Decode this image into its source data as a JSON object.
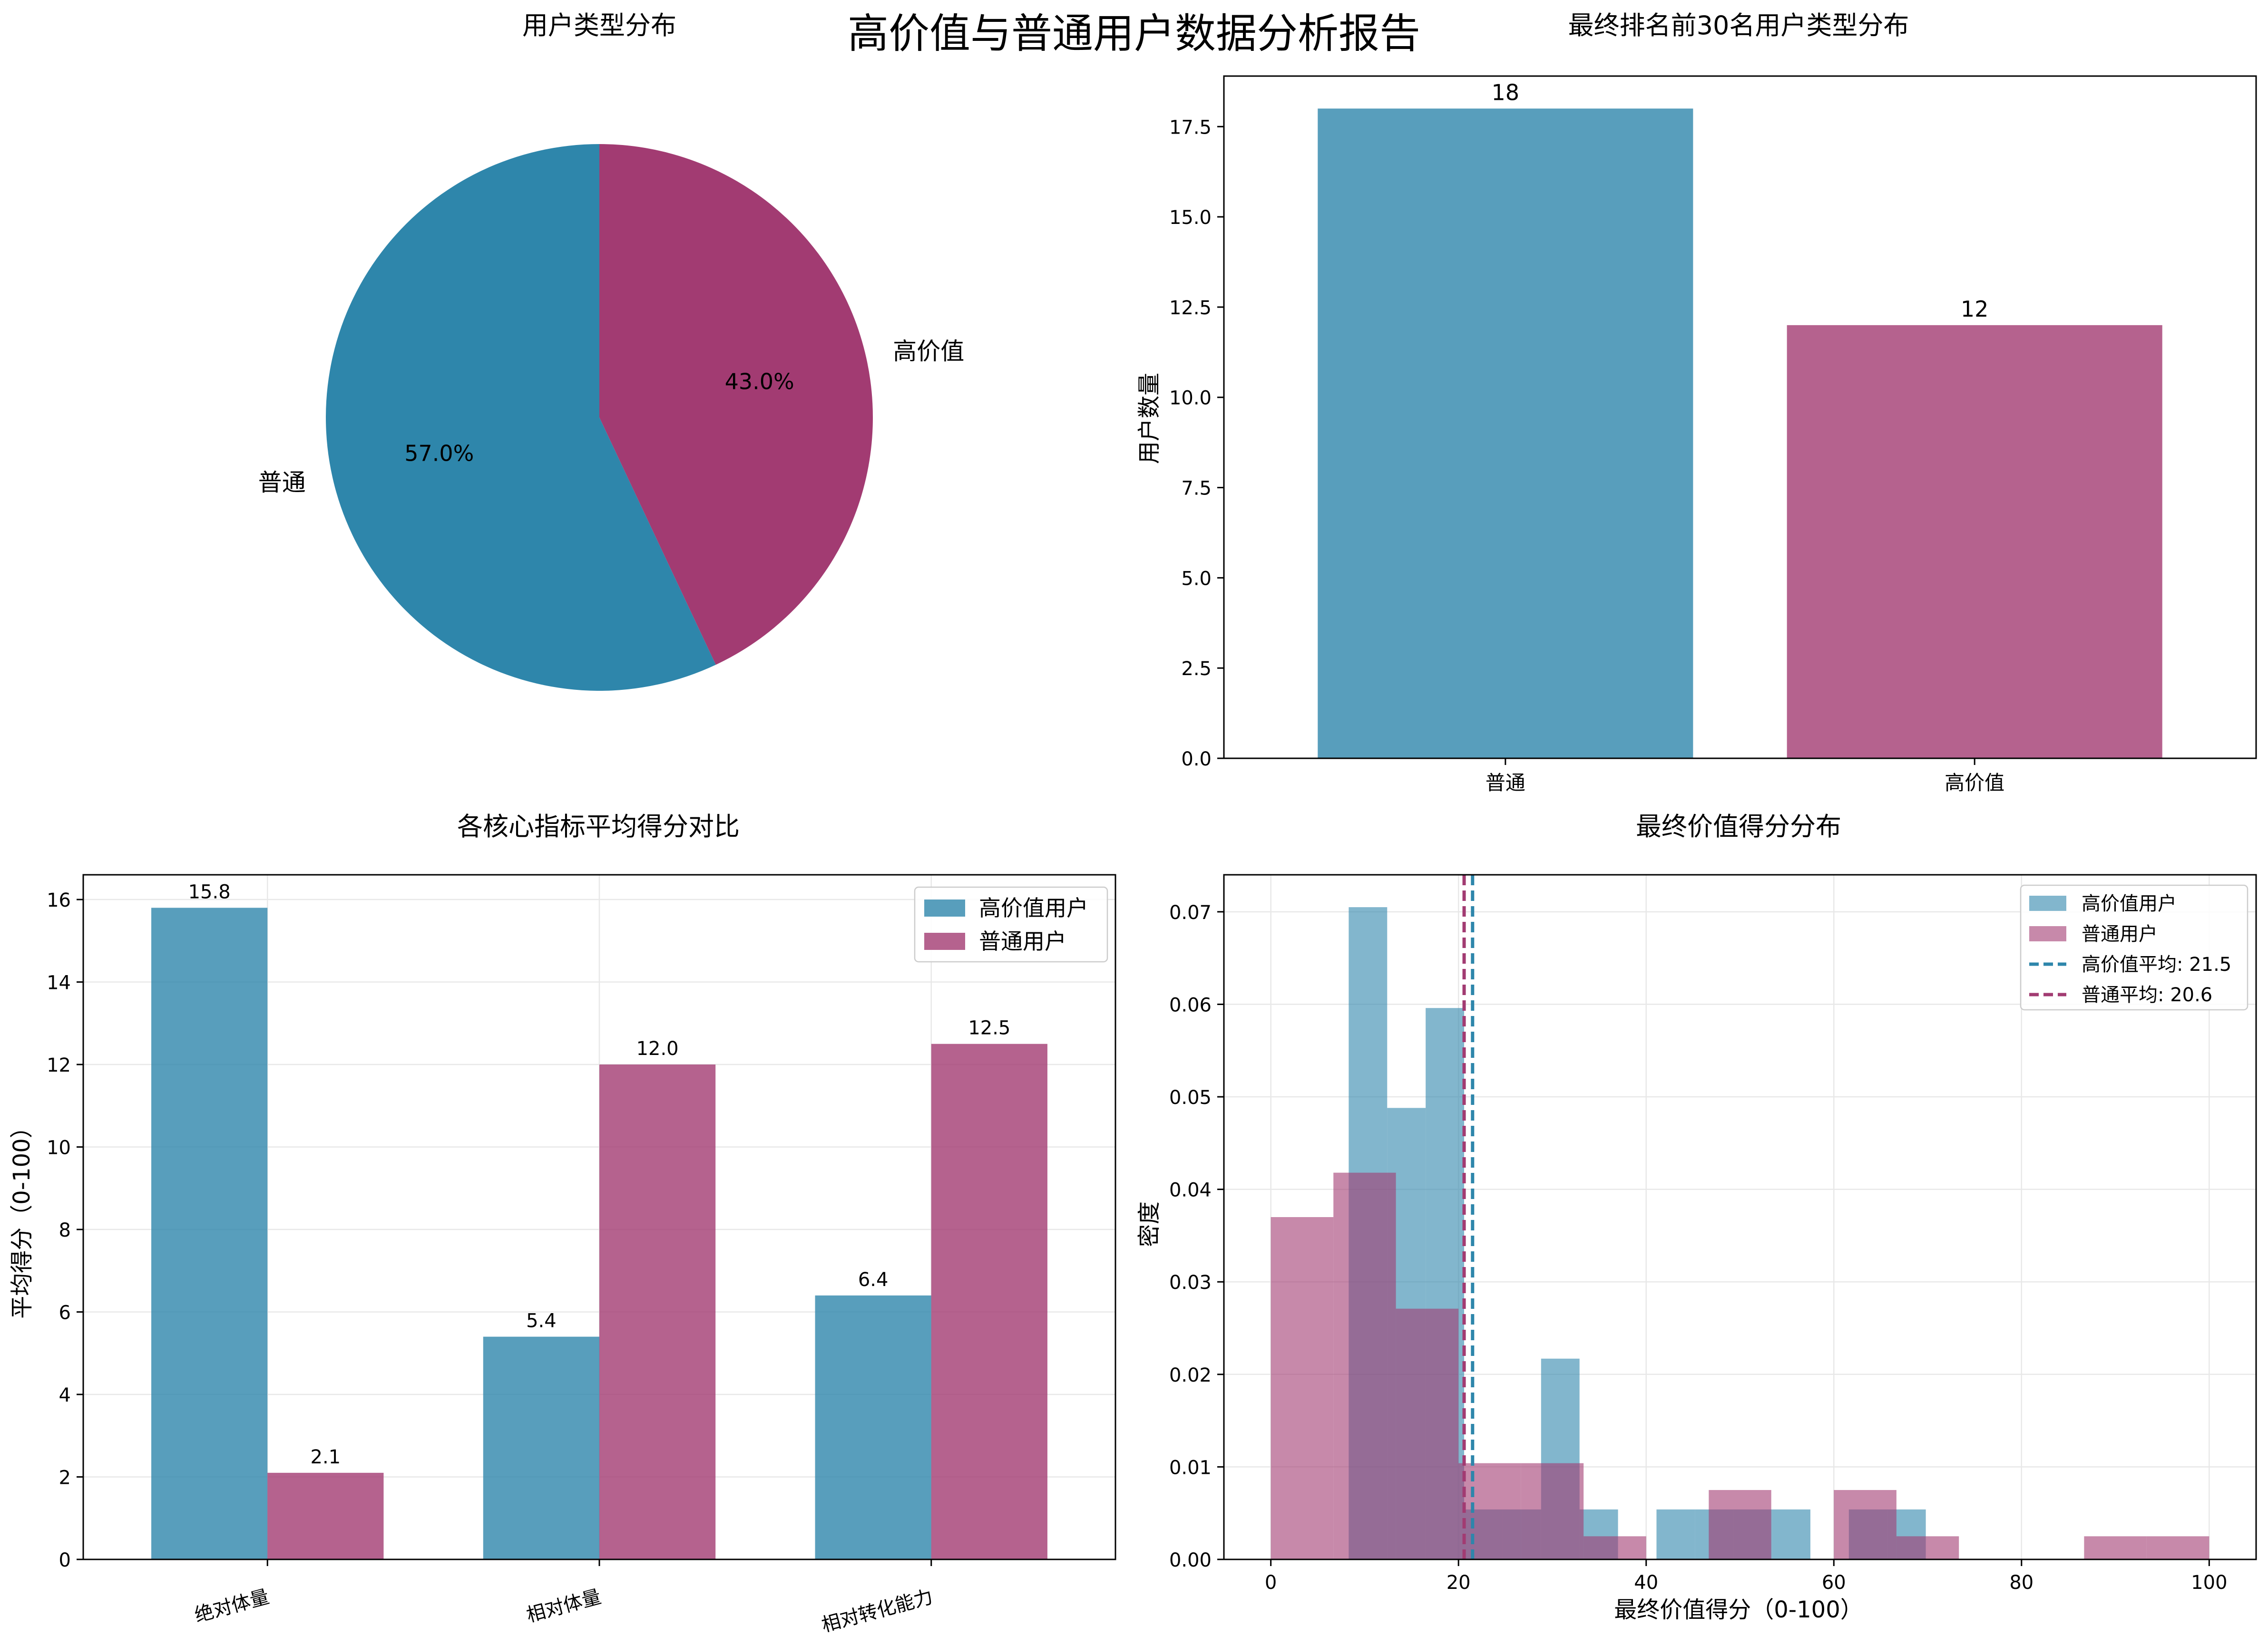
{
  "figure": {
    "suptitle": "高价值与普通用户数据分析报告",
    "colors": {
      "high": "#2E86AB",
      "normal": "#A23B72",
      "grid": "#e8e8e8",
      "axis": "#000000"
    }
  },
  "chart_data": [
    {
      "type": "pie",
      "title": "用户类型分布",
      "slices": [
        {
          "label": "高价值",
          "value": 43.0,
          "pct_label": "43.0%",
          "color": "#A23B72"
        },
        {
          "label": "普通",
          "value": 57.0,
          "pct_label": "57.0%",
          "color": "#2E86AB"
        }
      ],
      "start_angle_deg": 90,
      "direction": "clockwise"
    },
    {
      "type": "bar",
      "title": "最终排名前30名用户类型分布",
      "categories": [
        "普通",
        "高价值"
      ],
      "values": [
        18,
        12
      ],
      "value_labels": [
        "18",
        "12"
      ],
      "colors": [
        "#2E86AB",
        "#A23B72"
      ],
      "xlabel": "",
      "ylabel": "用户数量",
      "ylim": [
        0,
        18.9
      ],
      "yticks": [
        0.0,
        2.5,
        5.0,
        7.5,
        10.0,
        12.5,
        15.0,
        17.5
      ],
      "ytick_labels": [
        "0.0",
        "2.5",
        "5.0",
        "7.5",
        "10.0",
        "12.5",
        "15.0",
        "17.5"
      ],
      "grid": false
    },
    {
      "type": "bar",
      "title": "各核心指标平均得分对比",
      "categories": [
        "绝对体量",
        "相对体量",
        "相对转化能力"
      ],
      "series": [
        {
          "name": "高价值用户",
          "values": [
            15.8,
            5.4,
            6.4
          ],
          "labels": [
            "15.8",
            "5.4",
            "6.4"
          ],
          "color": "#2E86AB"
        },
        {
          "name": "普通用户",
          "values": [
            2.1,
            12.0,
            12.5
          ],
          "labels": [
            "2.1",
            "12.0",
            "12.5"
          ],
          "color": "#A23B72"
        }
      ],
      "xlabel": "",
      "ylabel": "平均得分（0-100）",
      "ylim": [
        0,
        16.6
      ],
      "yticks": [
        0,
        2,
        4,
        6,
        8,
        10,
        12,
        14,
        16
      ],
      "ytick_labels": [
        "0",
        "2",
        "4",
        "6",
        "8",
        "10",
        "12",
        "14",
        "16"
      ],
      "xtick_rotation_deg": -15,
      "legend": "top-right",
      "grid": true
    },
    {
      "type": "histogram",
      "title": "最终价值得分分布",
      "xlabel": "最终价值得分（0-100）",
      "ylabel": "密度",
      "xlim": [
        -5,
        105
      ],
      "ylim": [
        0,
        0.074
      ],
      "xticks": [
        0,
        20,
        40,
        60,
        80,
        100
      ],
      "xtick_labels": [
        "0",
        "20",
        "40",
        "60",
        "80",
        "100"
      ],
      "yticks": [
        0.0,
        0.01,
        0.02,
        0.03,
        0.04,
        0.05,
        0.06,
        0.07
      ],
      "ytick_labels": [
        "0.00",
        "0.01",
        "0.02",
        "0.03",
        "0.04",
        "0.05",
        "0.06",
        "0.07"
      ],
      "series": [
        {
          "name": "高价值用户",
          "color": "#2E86AB",
          "bin_edges": [
            8.3,
            12.4,
            16.5,
            20.6,
            24.7,
            28.8,
            32.9,
            37.0,
            41.1,
            45.2,
            49.3,
            53.4,
            57.5,
            61.6,
            65.7,
            69.8
          ],
          "densities": [
            0.0705,
            0.0488,
            0.0596,
            0.0054,
            0.0054,
            0.0217,
            0.0054,
            0.0,
            0.0054,
            0.0054,
            0.0054,
            0.0054,
            0.0,
            0.0054,
            0.0054
          ]
        },
        {
          "name": "普通用户",
          "color": "#A23B72",
          "bin_edges": [
            0.0,
            6.67,
            13.33,
            20.0,
            26.67,
            33.33,
            40.0,
            46.67,
            53.33,
            60.0,
            66.67,
            73.33,
            80.0,
            86.67,
            93.33,
            100.0
          ],
          "densities": [
            0.037,
            0.0418,
            0.0271,
            0.0104,
            0.0104,
            0.0025,
            0.0,
            0.0075,
            0.0,
            0.0075,
            0.0025,
            0.0,
            0.0,
            0.0025,
            0.0025
          ]
        }
      ],
      "mean_lines": [
        {
          "name": "高价值平均: 21.5",
          "x": 21.5,
          "color": "#2E86AB"
        },
        {
          "name": "普通平均: 20.6",
          "x": 20.6,
          "color": "#A23B72"
        }
      ],
      "legend": "top-right",
      "grid": true
    }
  ]
}
